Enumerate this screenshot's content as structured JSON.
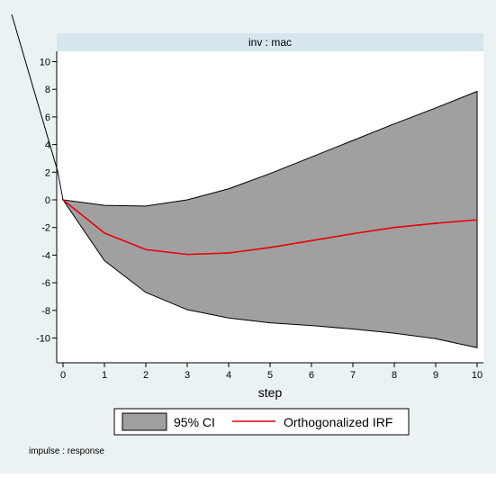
{
  "chart_data": {
    "type": "area",
    "title": "inv : mac",
    "xlabel": "step",
    "ylabel": "",
    "note": "impulse : response",
    "x": [
      0,
      1,
      2,
      3,
      4,
      5,
      6,
      7,
      8,
      9,
      10
    ],
    "xticks": [
      0,
      1,
      2,
      3,
      4,
      5,
      6,
      7,
      8,
      9,
      10
    ],
    "yticks": [
      -10,
      -8,
      -6,
      -4,
      -2,
      0,
      2,
      4,
      6,
      8,
      10
    ],
    "xlim": [
      0,
      10
    ],
    "ylim": [
      -11.2,
      11.2
    ],
    "grid": false,
    "legend_position": "bottom",
    "series": [
      {
        "name": "95% CI",
        "kind": "band",
        "upper": [
          0,
          -0.4,
          -0.45,
          0,
          0.8,
          1.9,
          3.1,
          4.3,
          5.5,
          6.65,
          7.85
        ],
        "lower": [
          0,
          -4.4,
          -6.7,
          -7.95,
          -8.55,
          -8.9,
          -9.1,
          -9.35,
          -9.65,
          -10.05,
          -10.7
        ],
        "color": "#a0a0a0"
      },
      {
        "name": "Orthogonalized IRF",
        "kind": "line",
        "values": [
          0,
          -2.4,
          -3.6,
          -3.95,
          -3.85,
          -3.45,
          -2.95,
          -2.45,
          -2.0,
          -1.7,
          -1.45
        ],
        "color": "#e8000b"
      }
    ],
    "colors": {
      "background": "#eaf2f3",
      "plot_area": "#ffffff",
      "title_strip": "#d6e6ec"
    }
  }
}
